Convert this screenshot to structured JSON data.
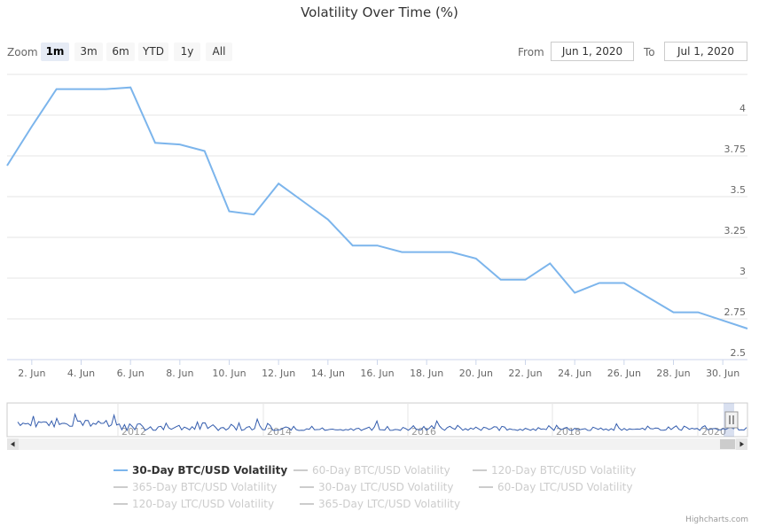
{
  "chart_data": {
    "type": "line",
    "title": "Volatility Over Time (%)",
    "x": [
      "2020-06-01",
      "2020-06-02",
      "2020-06-03",
      "2020-06-04",
      "2020-06-05",
      "2020-06-06",
      "2020-06-07",
      "2020-06-08",
      "2020-06-09",
      "2020-06-10",
      "2020-06-11",
      "2020-06-12",
      "2020-06-13",
      "2020-06-14",
      "2020-06-15",
      "2020-06-16",
      "2020-06-17",
      "2020-06-18",
      "2020-06-19",
      "2020-06-20",
      "2020-06-21",
      "2020-06-22",
      "2020-06-23",
      "2020-06-24",
      "2020-06-25",
      "2020-06-26",
      "2020-06-27",
      "2020-06-28",
      "2020-06-29",
      "2020-06-30",
      "2020-07-01"
    ],
    "series": [
      {
        "name": "30-Day BTC/USD Volatility",
        "values": [
          3.69,
          3.93,
          4.16,
          4.16,
          4.16,
          4.17,
          3.83,
          3.82,
          3.78,
          3.41,
          3.39,
          3.58,
          3.47,
          3.36,
          3.2,
          3.2,
          3.16,
          3.16,
          3.16,
          3.12,
          2.99,
          2.99,
          3.09,
          2.91,
          2.97,
          2.97,
          2.88,
          2.79,
          2.79,
          2.74,
          2.69
        ]
      }
    ],
    "x_tick_labels": [
      "2. Jun",
      "4. Jun",
      "6. Jun",
      "8. Jun",
      "10. Jun",
      "12. Jun",
      "14. Jun",
      "16. Jun",
      "18. Jun",
      "20. Jun",
      "22. Jun",
      "24. Jun",
      "26. Jun",
      "28. Jun",
      "30. Jun"
    ],
    "y_tick_labels": [
      "2.5",
      "2.75",
      "3",
      "3.25",
      "3.5",
      "3.75",
      "4"
    ],
    "ylim": [
      2.5,
      4.25
    ],
    "grid": true,
    "navigator": {
      "year_labels": [
        "2012",
        "2014",
        "2016",
        "2018",
        "2020"
      ]
    }
  },
  "range_selector": {
    "zoom_label": "Zoom",
    "buttons": [
      "1m",
      "3m",
      "6m",
      "YTD",
      "1y",
      "All"
    ],
    "selected": "1m",
    "from_label": "From",
    "from_value": "Jun 1, 2020",
    "to_label": "To",
    "to_value": "Jul 1, 2020"
  },
  "legend": {
    "items": [
      {
        "label": "30-Day BTC/USD Volatility",
        "active": true
      },
      {
        "label": "60-Day BTC/USD Volatility",
        "active": false
      },
      {
        "label": "120-Day BTC/USD Volatility",
        "active": false
      },
      {
        "label": "365-Day BTC/USD Volatility",
        "active": false
      },
      {
        "label": "30-Day LTC/USD Volatility",
        "active": false
      },
      {
        "label": "60-Day LTC/USD Volatility",
        "active": false
      },
      {
        "label": "120-Day LTC/USD Volatility",
        "active": false
      },
      {
        "label": "365-Day LTC/USD Volatility",
        "active": false
      }
    ]
  },
  "credits": "Highcharts.com",
  "colors": {
    "series": "#7cb5ec",
    "navigator_series": "#335cad",
    "grid": "#e6e6e6",
    "inactive": "#cccccc"
  }
}
